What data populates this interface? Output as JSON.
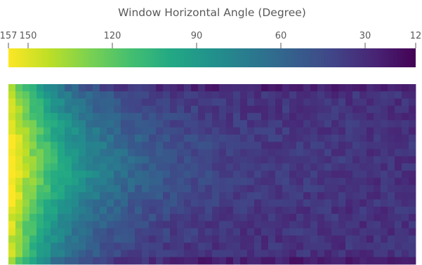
{
  "chart_data": {
    "type": "heatmap",
    "title": "Window Horizontal Angle (Degree)",
    "colormap": "viridis",
    "colorbar": {
      "location": "top",
      "min": 12,
      "max": 157,
      "direction": "high-to-low, left-to-right",
      "ticks": [
        157,
        150,
        120,
        90,
        60,
        30,
        12
      ],
      "tick_labels": [
        "157",
        "150",
        "120",
        "90",
        "60",
        "30",
        "12"
      ]
    },
    "grid": false,
    "n_rows": 25,
    "n_cols": 58,
    "value_model": "angle declines from about 150 at the left edge to about 30 at the right edge; highest values mid-height on the left; bottom row darker",
    "cell_values": "sampled from value_model with noise"
  }
}
